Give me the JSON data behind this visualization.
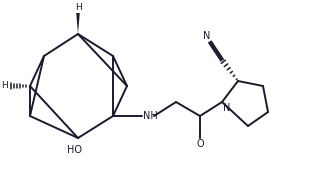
{
  "bg_color": "#ffffff",
  "line_color": "#1a1a2e",
  "linewidth": 1.4,
  "figsize": [
    3.17,
    1.76
  ],
  "dpi": 100,
  "xlim": [
    0,
    317
  ],
  "ylim": [
    0,
    176
  ]
}
